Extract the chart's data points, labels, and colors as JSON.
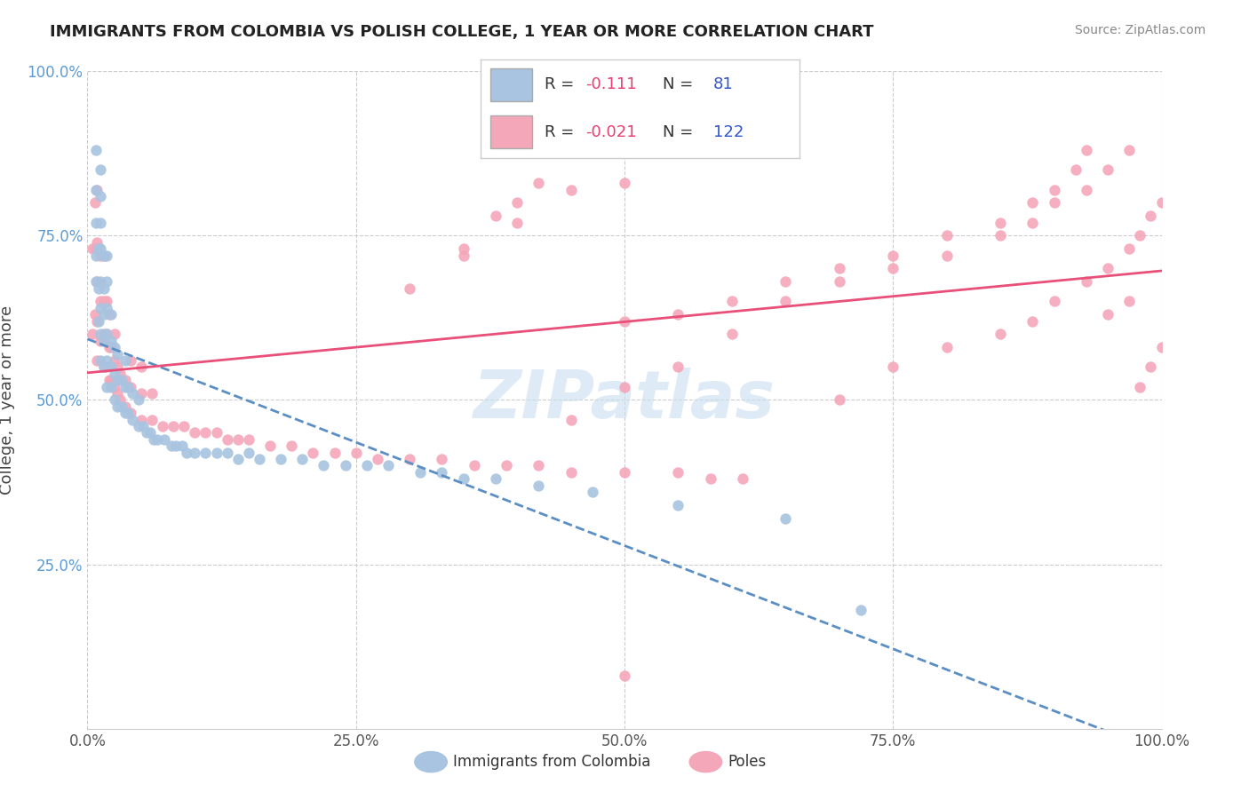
{
  "title": "IMMIGRANTS FROM COLOMBIA VS POLISH COLLEGE, 1 YEAR OR MORE CORRELATION CHART",
  "source": "Source: ZipAtlas.com",
  "ylabel": "College, 1 year or more",
  "xlim": [
    0,
    1
  ],
  "ylim": [
    0,
    1
  ],
  "xtick_labels": [
    "0.0%",
    "25.0%",
    "50.0%",
    "75.0%",
    "100.0%"
  ],
  "xtick_values": [
    0,
    0.25,
    0.5,
    0.75,
    1.0
  ],
  "ytick_labels": [
    "25.0%",
    "50.0%",
    "75.0%",
    "100.0%"
  ],
  "ytick_values": [
    0.25,
    0.5,
    0.75,
    1.0
  ],
  "blue_color": "#a8c4e0",
  "pink_color": "#f4a7b9",
  "blue_line_color": "#5b8fc4",
  "pink_line_color": "#e8507a",
  "r_blue": "-0.111",
  "n_blue": "81",
  "r_pink": "-0.021",
  "n_pink": "122",
  "watermark": "ZIPatlas",
  "legend_blue_color": "#a8c4e0",
  "legend_pink_color": "#f4a7b9",
  "blue_scatter_x": [
    0.008,
    0.008,
    0.008,
    0.008,
    0.008,
    0.01,
    0.01,
    0.01,
    0.012,
    0.012,
    0.012,
    0.012,
    0.012,
    0.012,
    0.012,
    0.012,
    0.015,
    0.015,
    0.015,
    0.015,
    0.015,
    0.018,
    0.018,
    0.018,
    0.018,
    0.018,
    0.018,
    0.022,
    0.022,
    0.022,
    0.022,
    0.025,
    0.025,
    0.025,
    0.028,
    0.028,
    0.028,
    0.032,
    0.032,
    0.035,
    0.035,
    0.035,
    0.038,
    0.038,
    0.042,
    0.042,
    0.048,
    0.048,
    0.052,
    0.055,
    0.058,
    0.062,
    0.065,
    0.072,
    0.078,
    0.082,
    0.088,
    0.092,
    0.1,
    0.11,
    0.12,
    0.13,
    0.14,
    0.15,
    0.16,
    0.18,
    0.2,
    0.22,
    0.24,
    0.26,
    0.28,
    0.31,
    0.33,
    0.35,
    0.38,
    0.42,
    0.47,
    0.55,
    0.65,
    0.72
  ],
  "blue_scatter_y": [
    0.68,
    0.72,
    0.77,
    0.82,
    0.88,
    0.62,
    0.67,
    0.73,
    0.56,
    0.6,
    0.64,
    0.68,
    0.73,
    0.77,
    0.81,
    0.85,
    0.55,
    0.59,
    0.63,
    0.67,
    0.72,
    0.52,
    0.56,
    0.6,
    0.64,
    0.68,
    0.72,
    0.52,
    0.55,
    0.59,
    0.63,
    0.5,
    0.54,
    0.58,
    0.49,
    0.53,
    0.57,
    0.49,
    0.53,
    0.48,
    0.52,
    0.56,
    0.48,
    0.52,
    0.47,
    0.51,
    0.46,
    0.5,
    0.46,
    0.45,
    0.45,
    0.44,
    0.44,
    0.44,
    0.43,
    0.43,
    0.43,
    0.42,
    0.42,
    0.42,
    0.42,
    0.42,
    0.41,
    0.42,
    0.41,
    0.41,
    0.41,
    0.4,
    0.4,
    0.4,
    0.4,
    0.39,
    0.39,
    0.38,
    0.38,
    0.37,
    0.36,
    0.34,
    0.32,
    0.18
  ],
  "pink_scatter_x": [
    0.005,
    0.005,
    0.007,
    0.007,
    0.007,
    0.009,
    0.009,
    0.009,
    0.009,
    0.009,
    0.012,
    0.012,
    0.012,
    0.015,
    0.015,
    0.015,
    0.015,
    0.018,
    0.018,
    0.018,
    0.02,
    0.02,
    0.02,
    0.022,
    0.022,
    0.025,
    0.025,
    0.025,
    0.028,
    0.028,
    0.03,
    0.03,
    0.035,
    0.035,
    0.04,
    0.04,
    0.04,
    0.05,
    0.05,
    0.05,
    0.06,
    0.06,
    0.07,
    0.08,
    0.09,
    0.1,
    0.11,
    0.12,
    0.13,
    0.14,
    0.15,
    0.17,
    0.19,
    0.21,
    0.23,
    0.25,
    0.27,
    0.3,
    0.33,
    0.36,
    0.39,
    0.42,
    0.45,
    0.5,
    0.55,
    0.58,
    0.61,
    0.5,
    0.42,
    0.3,
    0.35,
    0.4,
    0.45,
    0.5,
    0.55,
    0.6,
    0.65,
    0.7,
    0.75,
    0.8,
    0.85,
    0.88,
    0.9,
    0.92,
    0.93,
    0.95,
    0.97,
    0.7,
    0.75,
    0.8,
    0.85,
    0.88,
    0.9,
    0.93,
    0.95,
    0.97,
    0.98,
    0.99,
    1.0,
    0.35,
    0.38,
    0.4,
    0.42,
    0.45,
    0.5,
    0.55,
    0.6,
    0.65,
    0.7,
    0.75,
    0.8,
    0.85,
    0.88,
    0.9,
    0.93,
    0.95,
    0.97,
    0.98,
    0.99,
    1.0,
    0.5
  ],
  "pink_scatter_y": [
    0.6,
    0.73,
    0.63,
    0.73,
    0.8,
    0.56,
    0.62,
    0.68,
    0.74,
    0.82,
    0.59,
    0.65,
    0.72,
    0.55,
    0.6,
    0.65,
    0.72,
    0.55,
    0.6,
    0.65,
    0.53,
    0.58,
    0.63,
    0.53,
    0.58,
    0.52,
    0.56,
    0.6,
    0.51,
    0.55,
    0.5,
    0.54,
    0.49,
    0.53,
    0.48,
    0.52,
    0.56,
    0.47,
    0.51,
    0.55,
    0.47,
    0.51,
    0.46,
    0.46,
    0.46,
    0.45,
    0.45,
    0.45,
    0.44,
    0.44,
    0.44,
    0.43,
    0.43,
    0.42,
    0.42,
    0.42,
    0.41,
    0.41,
    0.41,
    0.4,
    0.4,
    0.4,
    0.39,
    0.39,
    0.39,
    0.38,
    0.38,
    0.83,
    0.88,
    0.67,
    0.72,
    0.77,
    0.82,
    0.62,
    0.63,
    0.65,
    0.68,
    0.7,
    0.72,
    0.75,
    0.77,
    0.8,
    0.82,
    0.85,
    0.88,
    0.63,
    0.65,
    0.68,
    0.7,
    0.72,
    0.75,
    0.77,
    0.8,
    0.82,
    0.85,
    0.88,
    0.52,
    0.55,
    0.58,
    0.73,
    0.78,
    0.8,
    0.83,
    0.47,
    0.52,
    0.55,
    0.6,
    0.65,
    0.5,
    0.55,
    0.58,
    0.6,
    0.62,
    0.65,
    0.68,
    0.7,
    0.73,
    0.75,
    0.78,
    0.8,
    0.08
  ]
}
